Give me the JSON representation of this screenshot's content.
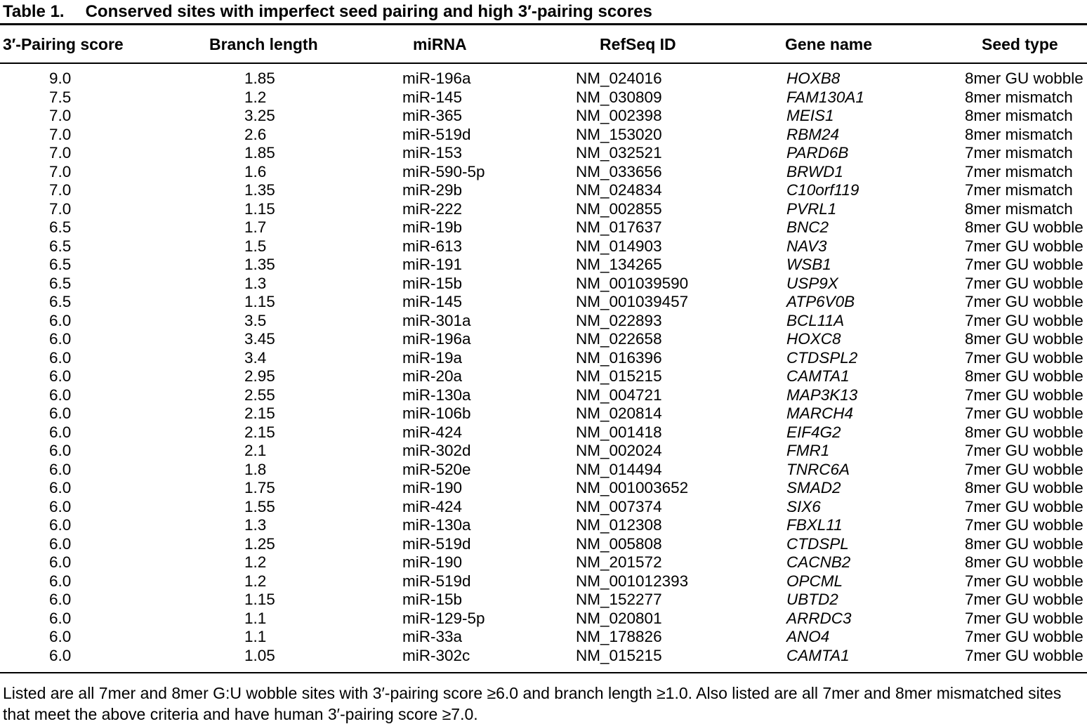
{
  "title": {
    "label": "Table 1.",
    "text": "Conserved sites with imperfect seed pairing and high 3′-pairing scores"
  },
  "table": {
    "columns": [
      "3′-Pairing score",
      "Branch length",
      "miRNA",
      "RefSeq ID",
      "Gene name",
      "Seed type"
    ],
    "rows": [
      [
        "9.0",
        "1.85",
        "miR-196a",
        "NM_024016",
        "HOXB8",
        "8mer GU wobble"
      ],
      [
        "7.5",
        "1.2",
        "miR-145",
        "NM_030809",
        "FAM130A1",
        "8mer mismatch"
      ],
      [
        "7.0",
        "3.25",
        "miR-365",
        "NM_002398",
        "MEIS1",
        "8mer mismatch"
      ],
      [
        "7.0",
        "2.6",
        "miR-519d",
        "NM_153020",
        "RBM24",
        "8mer mismatch"
      ],
      [
        "7.0",
        "1.85",
        "miR-153",
        "NM_032521",
        "PARD6B",
        "7mer mismatch"
      ],
      [
        "7.0",
        "1.6",
        "miR-590-5p",
        "NM_033656",
        "BRWD1",
        "7mer mismatch"
      ],
      [
        "7.0",
        "1.35",
        "miR-29b",
        "NM_024834",
        "C10orf119",
        "7mer mismatch"
      ],
      [
        "7.0",
        "1.15",
        "miR-222",
        "NM_002855",
        "PVRL1",
        "8mer mismatch"
      ],
      [
        "6.5",
        "1.7",
        "miR-19b",
        "NM_017637",
        "BNC2",
        "8mer GU wobble"
      ],
      [
        "6.5",
        "1.5",
        "miR-613",
        "NM_014903",
        "NAV3",
        "7mer GU wobble"
      ],
      [
        "6.5",
        "1.35",
        "miR-191",
        "NM_134265",
        "WSB1",
        "7mer GU wobble"
      ],
      [
        "6.5",
        "1.3",
        "miR-15b",
        "NM_001039590",
        "USP9X",
        "7mer GU wobble"
      ],
      [
        "6.5",
        "1.15",
        "miR-145",
        "NM_001039457",
        "ATP6V0B",
        "7mer GU wobble"
      ],
      [
        "6.0",
        "3.5",
        "miR-301a",
        "NM_022893",
        "BCL11A",
        "7mer GU wobble"
      ],
      [
        "6.0",
        "3.45",
        "miR-196a",
        "NM_022658",
        "HOXC8",
        "8mer GU wobble"
      ],
      [
        "6.0",
        "3.4",
        "miR-19a",
        "NM_016396",
        "CTDSPL2",
        "7mer GU wobble"
      ],
      [
        "6.0",
        "2.95",
        "miR-20a",
        "NM_015215",
        "CAMTA1",
        "8mer GU wobble"
      ],
      [
        "6.0",
        "2.55",
        "miR-130a",
        "NM_004721",
        "MAP3K13",
        "7mer GU wobble"
      ],
      [
        "6.0",
        "2.15",
        "miR-106b",
        "NM_020814",
        "MARCH4",
        "7mer GU wobble"
      ],
      [
        "6.0",
        "2.15",
        "miR-424",
        "NM_001418",
        "EIF4G2",
        "8mer GU wobble"
      ],
      [
        "6.0",
        "2.1",
        "miR-302d",
        "NM_002024",
        "FMR1",
        "7mer GU wobble"
      ],
      [
        "6.0",
        "1.8",
        "miR-520e",
        "NM_014494",
        "TNRC6A",
        "7mer GU wobble"
      ],
      [
        "6.0",
        "1.75",
        "miR-190",
        "NM_001003652",
        "SMAD2",
        "8mer GU wobble"
      ],
      [
        "6.0",
        "1.55",
        "miR-424",
        "NM_007374",
        "SIX6",
        "7mer GU wobble"
      ],
      [
        "6.0",
        "1.3",
        "miR-130a",
        "NM_012308",
        "FBXL11",
        "7mer GU wobble"
      ],
      [
        "6.0",
        "1.25",
        "miR-519d",
        "NM_005808",
        "CTDSPL",
        "8mer GU wobble"
      ],
      [
        "6.0",
        "1.2",
        "miR-190",
        "NM_201572",
        "CACNB2",
        "8mer GU wobble"
      ],
      [
        "6.0",
        "1.2",
        "miR-519d",
        "NM_001012393",
        "OPCML",
        "7mer GU wobble"
      ],
      [
        "6.0",
        "1.15",
        "miR-15b",
        "NM_152277",
        "UBTD2",
        "7mer GU wobble"
      ],
      [
        "6.0",
        "1.1",
        "miR-129-5p",
        "NM_020801",
        "ARRDC3",
        "7mer GU wobble"
      ],
      [
        "6.0",
        "1.1",
        "miR-33a",
        "NM_178826",
        "ANO4",
        "7mer GU wobble"
      ],
      [
        "6.0",
        "1.05",
        "miR-302c",
        "NM_015215",
        "CAMTA1",
        "7mer GU wobble"
      ]
    ]
  },
  "footnote": "Listed are all 7mer and 8mer G:U wobble sites with 3′-pairing score ≥6.0 and branch length ≥1.0. Also listed are all 7mer and 8mer mismatched sites that meet the above criteria and have human 3′-pairing score ≥7.0."
}
